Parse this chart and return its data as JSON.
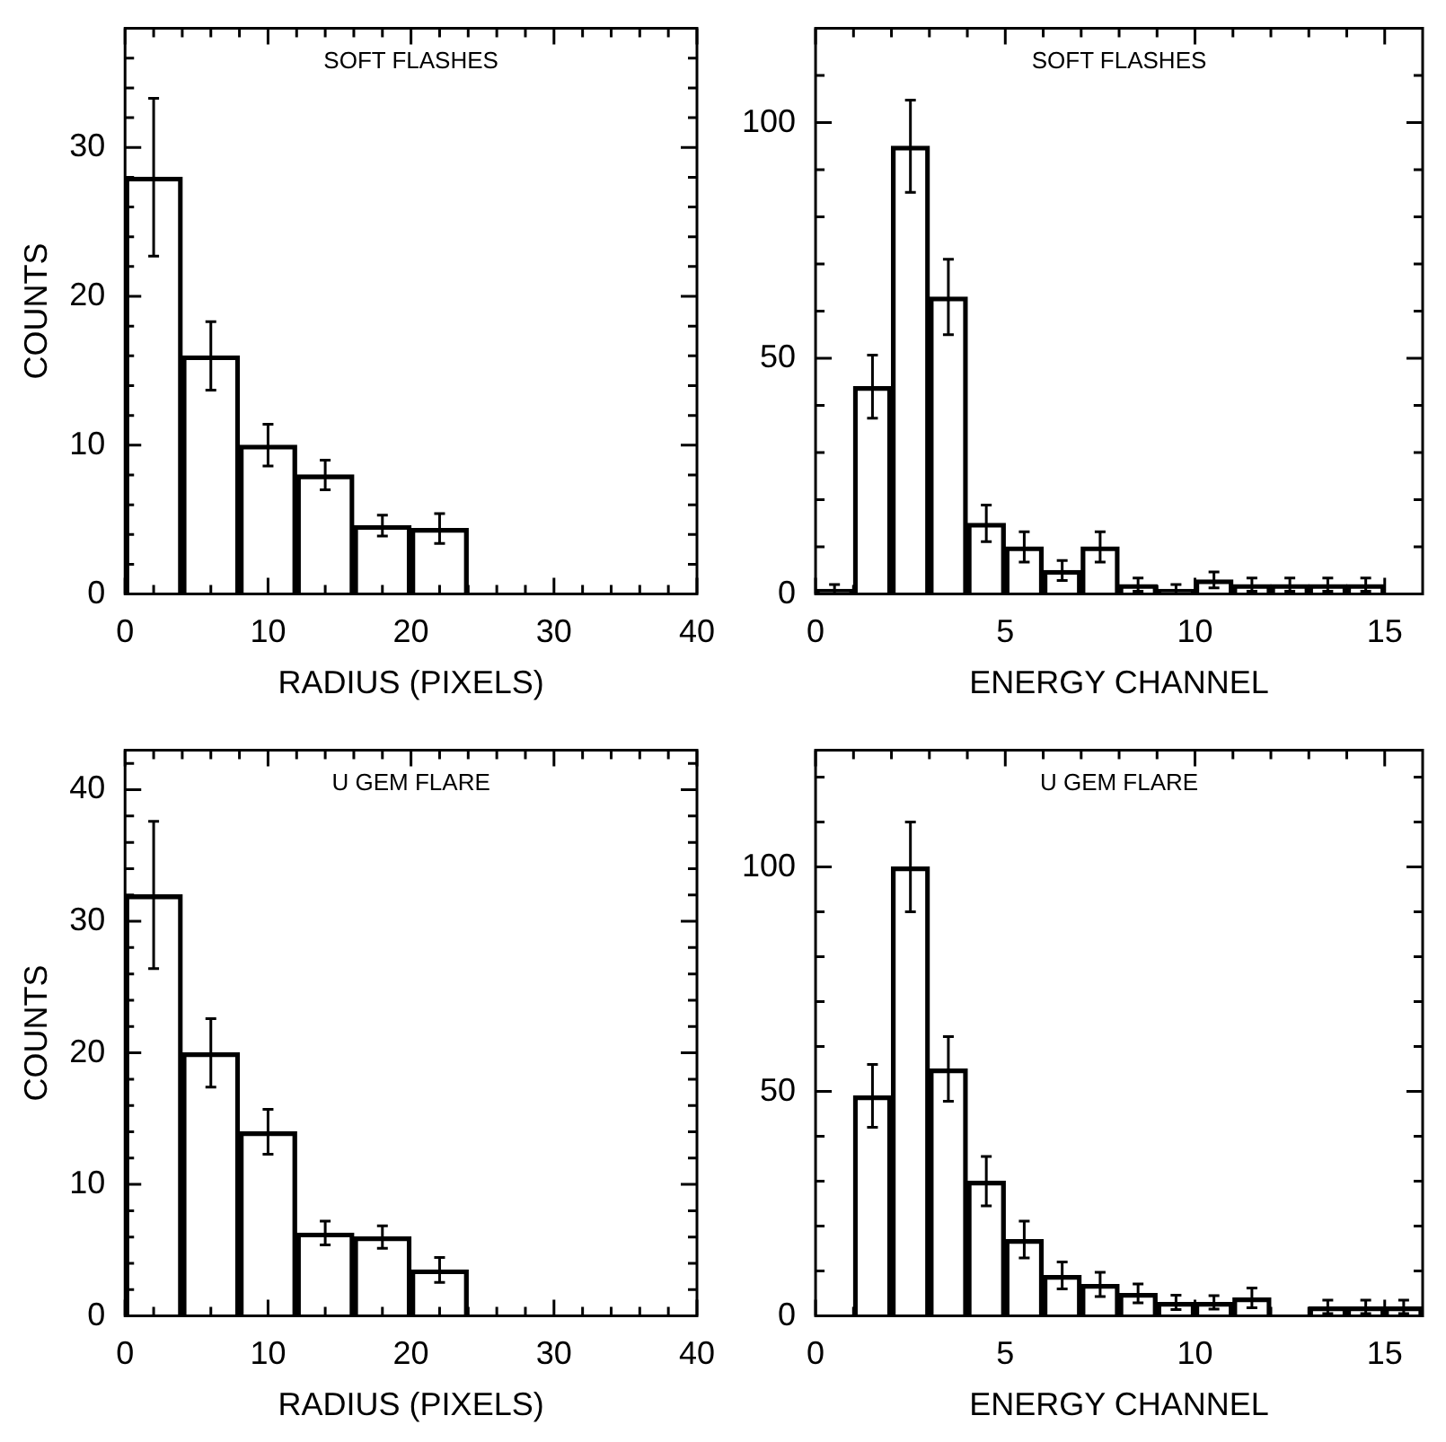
{
  "chart_data": [
    {
      "type": "bar",
      "title": "SOFT FLASHES",
      "xlabel": "RADIUS (PIXELS)",
      "ylabel": "COUNTS",
      "color": "#000000",
      "x": [
        2,
        6,
        10,
        14,
        18,
        22
      ],
      "values": [
        28,
        16,
        10,
        8,
        4.6,
        4.4
      ],
      "errors": [
        5.3,
        2.3,
        1.4,
        1,
        0.7,
        1
      ],
      "xlim": [
        0,
        40
      ],
      "ylim": [
        0,
        38
      ],
      "xticks": [
        0,
        {
          "value": 2,
          "label": null
        },
        {
          "value": 4,
          "label": null
        },
        {
          "value": 6,
          "label": null
        },
        {
          "value": 8,
          "label": null
        },
        10,
        {
          "value": 12,
          "label": null
        },
        {
          "value": 14,
          "label": null
        },
        {
          "value": 16,
          "label": null
        },
        {
          "value": 18,
          "label": null
        },
        20,
        {
          "value": 22,
          "label": null
        },
        {
          "value": 24,
          "label": null
        },
        {
          "value": 26,
          "label": null
        },
        {
          "value": 28,
          "label": null
        },
        30,
        {
          "value": 32,
          "label": null
        },
        {
          "value": 34,
          "label": null
        },
        {
          "value": 36,
          "label": null
        },
        {
          "value": 38,
          "label": null
        },
        40
      ],
      "yticks": [
        0,
        {
          "value": 2,
          "label": null
        },
        {
          "value": 4,
          "label": null
        },
        {
          "value": 6,
          "label": null
        },
        {
          "value": 8,
          "label": null
        },
        10,
        {
          "value": 12,
          "label": null
        },
        {
          "value": 14,
          "label": null
        },
        {
          "value": 16,
          "label": null
        },
        {
          "value": 18,
          "label": null
        },
        20,
        {
          "value": 22,
          "label": null
        },
        {
          "value": 24,
          "label": null
        },
        {
          "value": 26,
          "label": null
        },
        {
          "value": 28,
          "label": null
        },
        30,
        {
          "value": 32,
          "label": null
        },
        {
          "value": 34,
          "label": null
        },
        {
          "value": 36,
          "label": null
        }
      ]
    },
    {
      "type": "bar",
      "title": "SOFT FLASHES",
      "xlabel": "ENERGY CHANNEL",
      "color": "#000000",
      "x": [
        0.5,
        1.5,
        2.5,
        3.5,
        4.5,
        5.5,
        6.5,
        7.5,
        8.5,
        9.5,
        10.5,
        11.5,
        12.5,
        13.5,
        14.5
      ],
      "values": [
        1,
        44,
        95,
        63,
        15,
        10,
        5,
        10,
        2,
        1,
        3,
        2,
        2,
        2,
        2
      ],
      "errors": [
        1,
        6.7,
        9.8,
        8,
        3.9,
        3.2,
        2.1,
        3.2,
        1.4,
        1,
        1.7,
        1.4,
        1.4,
        1.4,
        1.4
      ],
      "xlim": [
        0,
        16
      ],
      "ylim": [
        0,
        120
      ],
      "xticks": [
        0,
        {
          "value": 1,
          "label": null
        },
        {
          "value": 2,
          "label": null
        },
        {
          "value": 3,
          "label": null
        },
        {
          "value": 4,
          "label": null
        },
        5,
        {
          "value": 6,
          "label": null
        },
        {
          "value": 7,
          "label": null
        },
        {
          "value": 8,
          "label": null
        },
        {
          "value": 9,
          "label": null
        },
        10,
        {
          "value": 11,
          "label": null
        },
        {
          "value": 12,
          "label": null
        },
        {
          "value": 13,
          "label": null
        },
        {
          "value": 14,
          "label": null
        },
        15
      ],
      "yticks": [
        0,
        {
          "value": 10,
          "label": null
        },
        {
          "value": 20,
          "label": null
        },
        {
          "value": 30,
          "label": null
        },
        {
          "value": 40,
          "label": null
        },
        50,
        {
          "value": 60,
          "label": null
        },
        {
          "value": 70,
          "label": null
        },
        {
          "value": 80,
          "label": null
        },
        {
          "value": 90,
          "label": null
        },
        100,
        {
          "value": 110,
          "label": null
        }
      ]
    },
    {
      "type": "bar",
      "title": "U GEM FLARE",
      "xlabel": "RADIUS (PIXELS)",
      "ylabel": "COUNTS",
      "color": "#000000",
      "x": [
        2,
        6,
        10,
        14,
        18,
        22
      ],
      "values": [
        32,
        20,
        14,
        6.3,
        6,
        3.5
      ],
      "errors": [
        5.6,
        2.6,
        1.7,
        0.9,
        0.85,
        0.95
      ],
      "xlim": [
        0,
        40
      ],
      "ylim": [
        0,
        43
      ],
      "xticks": [
        0,
        {
          "value": 2,
          "label": null
        },
        {
          "value": 4,
          "label": null
        },
        {
          "value": 6,
          "label": null
        },
        {
          "value": 8,
          "label": null
        },
        10,
        {
          "value": 12,
          "label": null
        },
        {
          "value": 14,
          "label": null
        },
        {
          "value": 16,
          "label": null
        },
        {
          "value": 18,
          "label": null
        },
        20,
        {
          "value": 22,
          "label": null
        },
        {
          "value": 24,
          "label": null
        },
        {
          "value": 26,
          "label": null
        },
        {
          "value": 28,
          "label": null
        },
        30,
        {
          "value": 32,
          "label": null
        },
        {
          "value": 34,
          "label": null
        },
        {
          "value": 36,
          "label": null
        },
        {
          "value": 38,
          "label": null
        },
        40
      ],
      "yticks": [
        0,
        {
          "value": 2,
          "label": null
        },
        {
          "value": 4,
          "label": null
        },
        {
          "value": 6,
          "label": null
        },
        {
          "value": 8,
          "label": null
        },
        10,
        {
          "value": 12,
          "label": null
        },
        {
          "value": 14,
          "label": null
        },
        {
          "value": 16,
          "label": null
        },
        {
          "value": 18,
          "label": null
        },
        20,
        {
          "value": 22,
          "label": null
        },
        {
          "value": 24,
          "label": null
        },
        {
          "value": 26,
          "label": null
        },
        {
          "value": 28,
          "label": null
        },
        30,
        {
          "value": 32,
          "label": null
        },
        {
          "value": 34,
          "label": null
        },
        {
          "value": 36,
          "label": null
        },
        {
          "value": 38,
          "label": null
        },
        40,
        {
          "value": 42,
          "label": null
        }
      ]
    },
    {
      "type": "bar",
      "title": "U GEM FLARE",
      "xlabel": "ENERGY CHANNEL",
      "color": "#000000",
      "x": [
        0.5,
        1.5,
        2.5,
        3.5,
        4.5,
        5.5,
        6.5,
        7.5,
        8.5,
        9.5,
        10.5,
        11.5,
        12.5,
        13.5,
        14.5,
        15.5
      ],
      "values": [
        0,
        49,
        100,
        55,
        30,
        17,
        9,
        7,
        5,
        3,
        3,
        4,
        0,
        2,
        2,
        2
      ],
      "errors": [
        null,
        7,
        10,
        7.2,
        5.5,
        4.1,
        3,
        2.7,
        2.1,
        1.6,
        1.5,
        2.2,
        null,
        1.5,
        1.5,
        1.5
      ],
      "xlim": [
        0,
        16
      ],
      "ylim": [
        0,
        126
      ],
      "xticks": [
        0,
        {
          "value": 1,
          "label": null
        },
        {
          "value": 2,
          "label": null
        },
        {
          "value": 3,
          "label": null
        },
        {
          "value": 4,
          "label": null
        },
        5,
        {
          "value": 6,
          "label": null
        },
        {
          "value": 7,
          "label": null
        },
        {
          "value": 8,
          "label": null
        },
        {
          "value": 9,
          "label": null
        },
        10,
        {
          "value": 11,
          "label": null
        },
        {
          "value": 12,
          "label": null
        },
        {
          "value": 13,
          "label": null
        },
        {
          "value": 14,
          "label": null
        },
        15
      ],
      "yticks": [
        0,
        {
          "value": 10,
          "label": null
        },
        {
          "value": 20,
          "label": null
        },
        {
          "value": 30,
          "label": null
        },
        {
          "value": 40,
          "label": null
        },
        50,
        {
          "value": 60,
          "label": null
        },
        {
          "value": 70,
          "label": null
        },
        {
          "value": 80,
          "label": null
        },
        {
          "value": 90,
          "label": null
        },
        100,
        {
          "value": 110,
          "label": null
        },
        {
          "value": 120,
          "label": null
        }
      ]
    }
  ]
}
